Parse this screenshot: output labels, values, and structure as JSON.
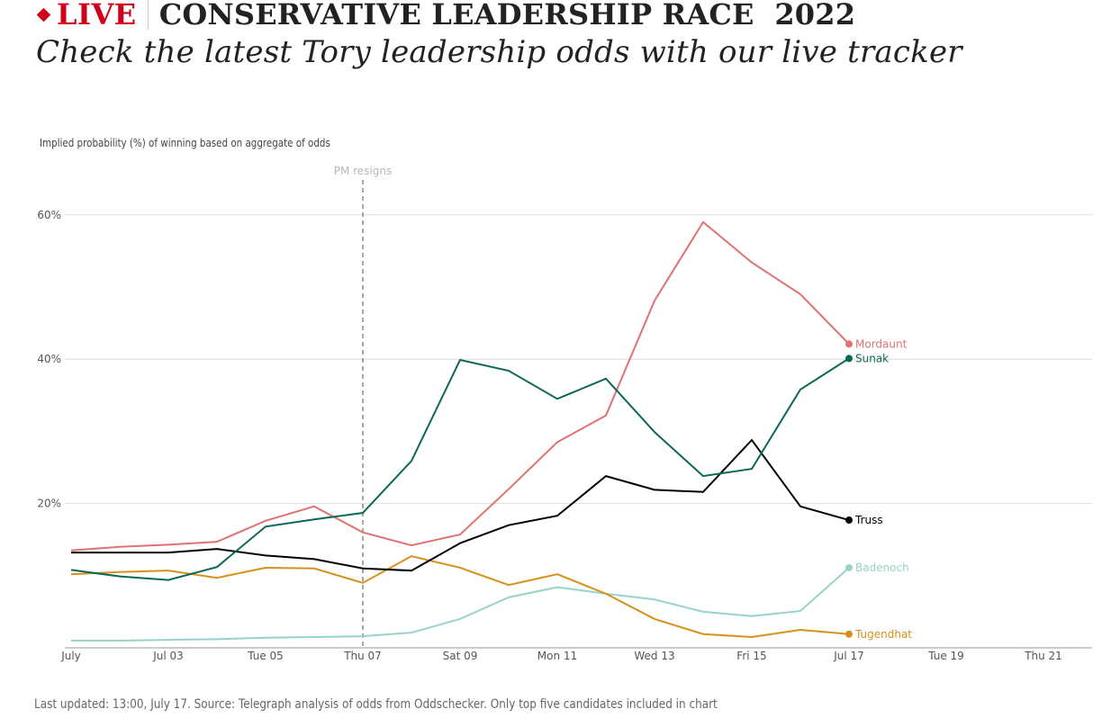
{
  "header": {
    "live_label": "LIVE",
    "title": "CONSERVATIVE LEADERSHIP RACE  2022",
    "subtitle": "Check the latest Tory leadership odds with our live tracker",
    "live_color": "#d0021b"
  },
  "footer": "Last updated: 13:00, July 17. Source: Telegraph analysis of odds from Oddschecker. Only top five candidates included in chart",
  "chart_data": {
    "type": "line",
    "title": "Conservative leadership race 2022",
    "ylabel": "Implied probability (%) of winning based on aggregate of odds",
    "xlabel": "",
    "ylim": [
      0,
      60
    ],
    "yticks": [
      20,
      40,
      60
    ],
    "ytick_labels": [
      "20%",
      "40%",
      "60%"
    ],
    "xlim_days": [
      1,
      22
    ],
    "xticks_days": [
      1,
      3,
      5,
      7,
      9,
      11,
      13,
      15,
      17,
      19,
      21
    ],
    "xtick_labels": [
      "July",
      "Jul 03",
      "Tue 05",
      "Thu 07",
      "Sat 09",
      "Mon 11",
      "Wed 13",
      "Fri 15",
      "Jul 17",
      "Tue 19",
      "Thu 21"
    ],
    "grid": true,
    "x_days": [
      1,
      2,
      3,
      4,
      5,
      6,
      7,
      8,
      9,
      10,
      11,
      12,
      13,
      14,
      15,
      16,
      17
    ],
    "annotations": [
      {
        "label": "PM resigns",
        "day": 7
      }
    ],
    "series": [
      {
        "name": "Mordaunt",
        "color": "#e07272",
        "values": [
          13.5,
          14.0,
          14.3,
          14.7,
          17.6,
          19.6,
          16.0,
          14.2,
          15.7,
          22.0,
          28.5,
          32.2,
          48.1,
          59.0,
          53.4,
          49.0,
          42.1
        ]
      },
      {
        "name": "Sunak",
        "color": "#0c6757",
        "values": [
          10.8,
          9.9,
          9.4,
          11.2,
          16.8,
          17.8,
          18.7,
          25.9,
          39.9,
          38.4,
          34.5,
          37.3,
          29.9,
          23.8,
          24.8,
          35.8,
          40.1
        ]
      },
      {
        "name": "Truss",
        "color": "#000000",
        "values": [
          13.2,
          13.2,
          13.2,
          13.7,
          12.8,
          12.3,
          11.0,
          10.7,
          14.5,
          17.0,
          18.3,
          23.8,
          21.9,
          21.6,
          28.8,
          19.6,
          17.7
        ]
      },
      {
        "name": "Badenoch",
        "color": "#97d3c9",
        "values": [
          1.0,
          1.0,
          1.1,
          1.2,
          1.4,
          1.5,
          1.6,
          2.1,
          4.0,
          7.0,
          8.4,
          7.5,
          6.7,
          5.0,
          4.4,
          5.1,
          11.1
        ]
      },
      {
        "name": "Tugendhat",
        "color": "#d7901b",
        "values": [
          10.2,
          10.5,
          10.7,
          9.7,
          11.1,
          11.0,
          9.0,
          12.7,
          11.1,
          8.7,
          10.2,
          7.5,
          4.0,
          1.9,
          1.5,
          2.5,
          1.9
        ]
      }
    ]
  }
}
